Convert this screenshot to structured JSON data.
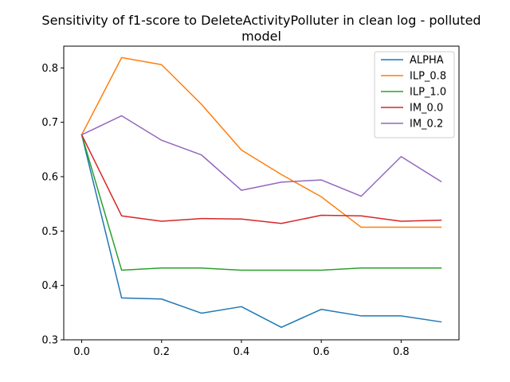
{
  "chart_data": {
    "type": "line",
    "title_lines": [
      "Sensitivity of f1-score to DeleteActivityPolluter in clean log - polluted",
      "model"
    ],
    "xlabel": "",
    "ylabel": "",
    "x": [
      0.0,
      0.1,
      0.2,
      0.3,
      0.4,
      0.5,
      0.6,
      0.7,
      0.8,
      0.9
    ],
    "xlim": [
      -0.045,
      0.945
    ],
    "ylim": [
      0.3,
      0.84
    ],
    "xticks": [
      0.0,
      0.2,
      0.4,
      0.6,
      0.8
    ],
    "xtick_labels": [
      "0.0",
      "0.2",
      "0.4",
      "0.6",
      "0.8"
    ],
    "yticks": [
      0.3,
      0.4,
      0.5,
      0.6,
      0.7,
      0.8
    ],
    "ytick_labels": [
      "0.3",
      "0.4",
      "0.5",
      "0.6",
      "0.7",
      "0.8"
    ],
    "grid": false,
    "legend_position": "top-right",
    "series": [
      {
        "name": "ALPHA",
        "color": "#1f77b4",
        "values": [
          0.677,
          0.377,
          0.375,
          0.349,
          0.361,
          0.323,
          0.356,
          0.344,
          0.344,
          0.333
        ]
      },
      {
        "name": "ILP_0.8",
        "color": "#ff7f0e",
        "values": [
          0.677,
          0.819,
          0.806,
          0.733,
          0.649,
          0.604,
          0.563,
          0.507,
          0.507,
          0.507
        ]
      },
      {
        "name": "ILP_1.0",
        "color": "#2ca02c",
        "values": [
          0.677,
          0.428,
          0.432,
          0.432,
          0.428,
          0.428,
          0.428,
          0.432,
          0.432,
          0.432
        ]
      },
      {
        "name": "IM_0.0",
        "color": "#d62728",
        "values": [
          0.677,
          0.528,
          0.518,
          0.523,
          0.522,
          0.514,
          0.529,
          0.528,
          0.518,
          0.52
        ]
      },
      {
        "name": "IM_0.2",
        "color": "#9467bd",
        "values": [
          0.677,
          0.712,
          0.667,
          0.64,
          0.575,
          0.59,
          0.594,
          0.564,
          0.637,
          0.591
        ]
      }
    ]
  }
}
